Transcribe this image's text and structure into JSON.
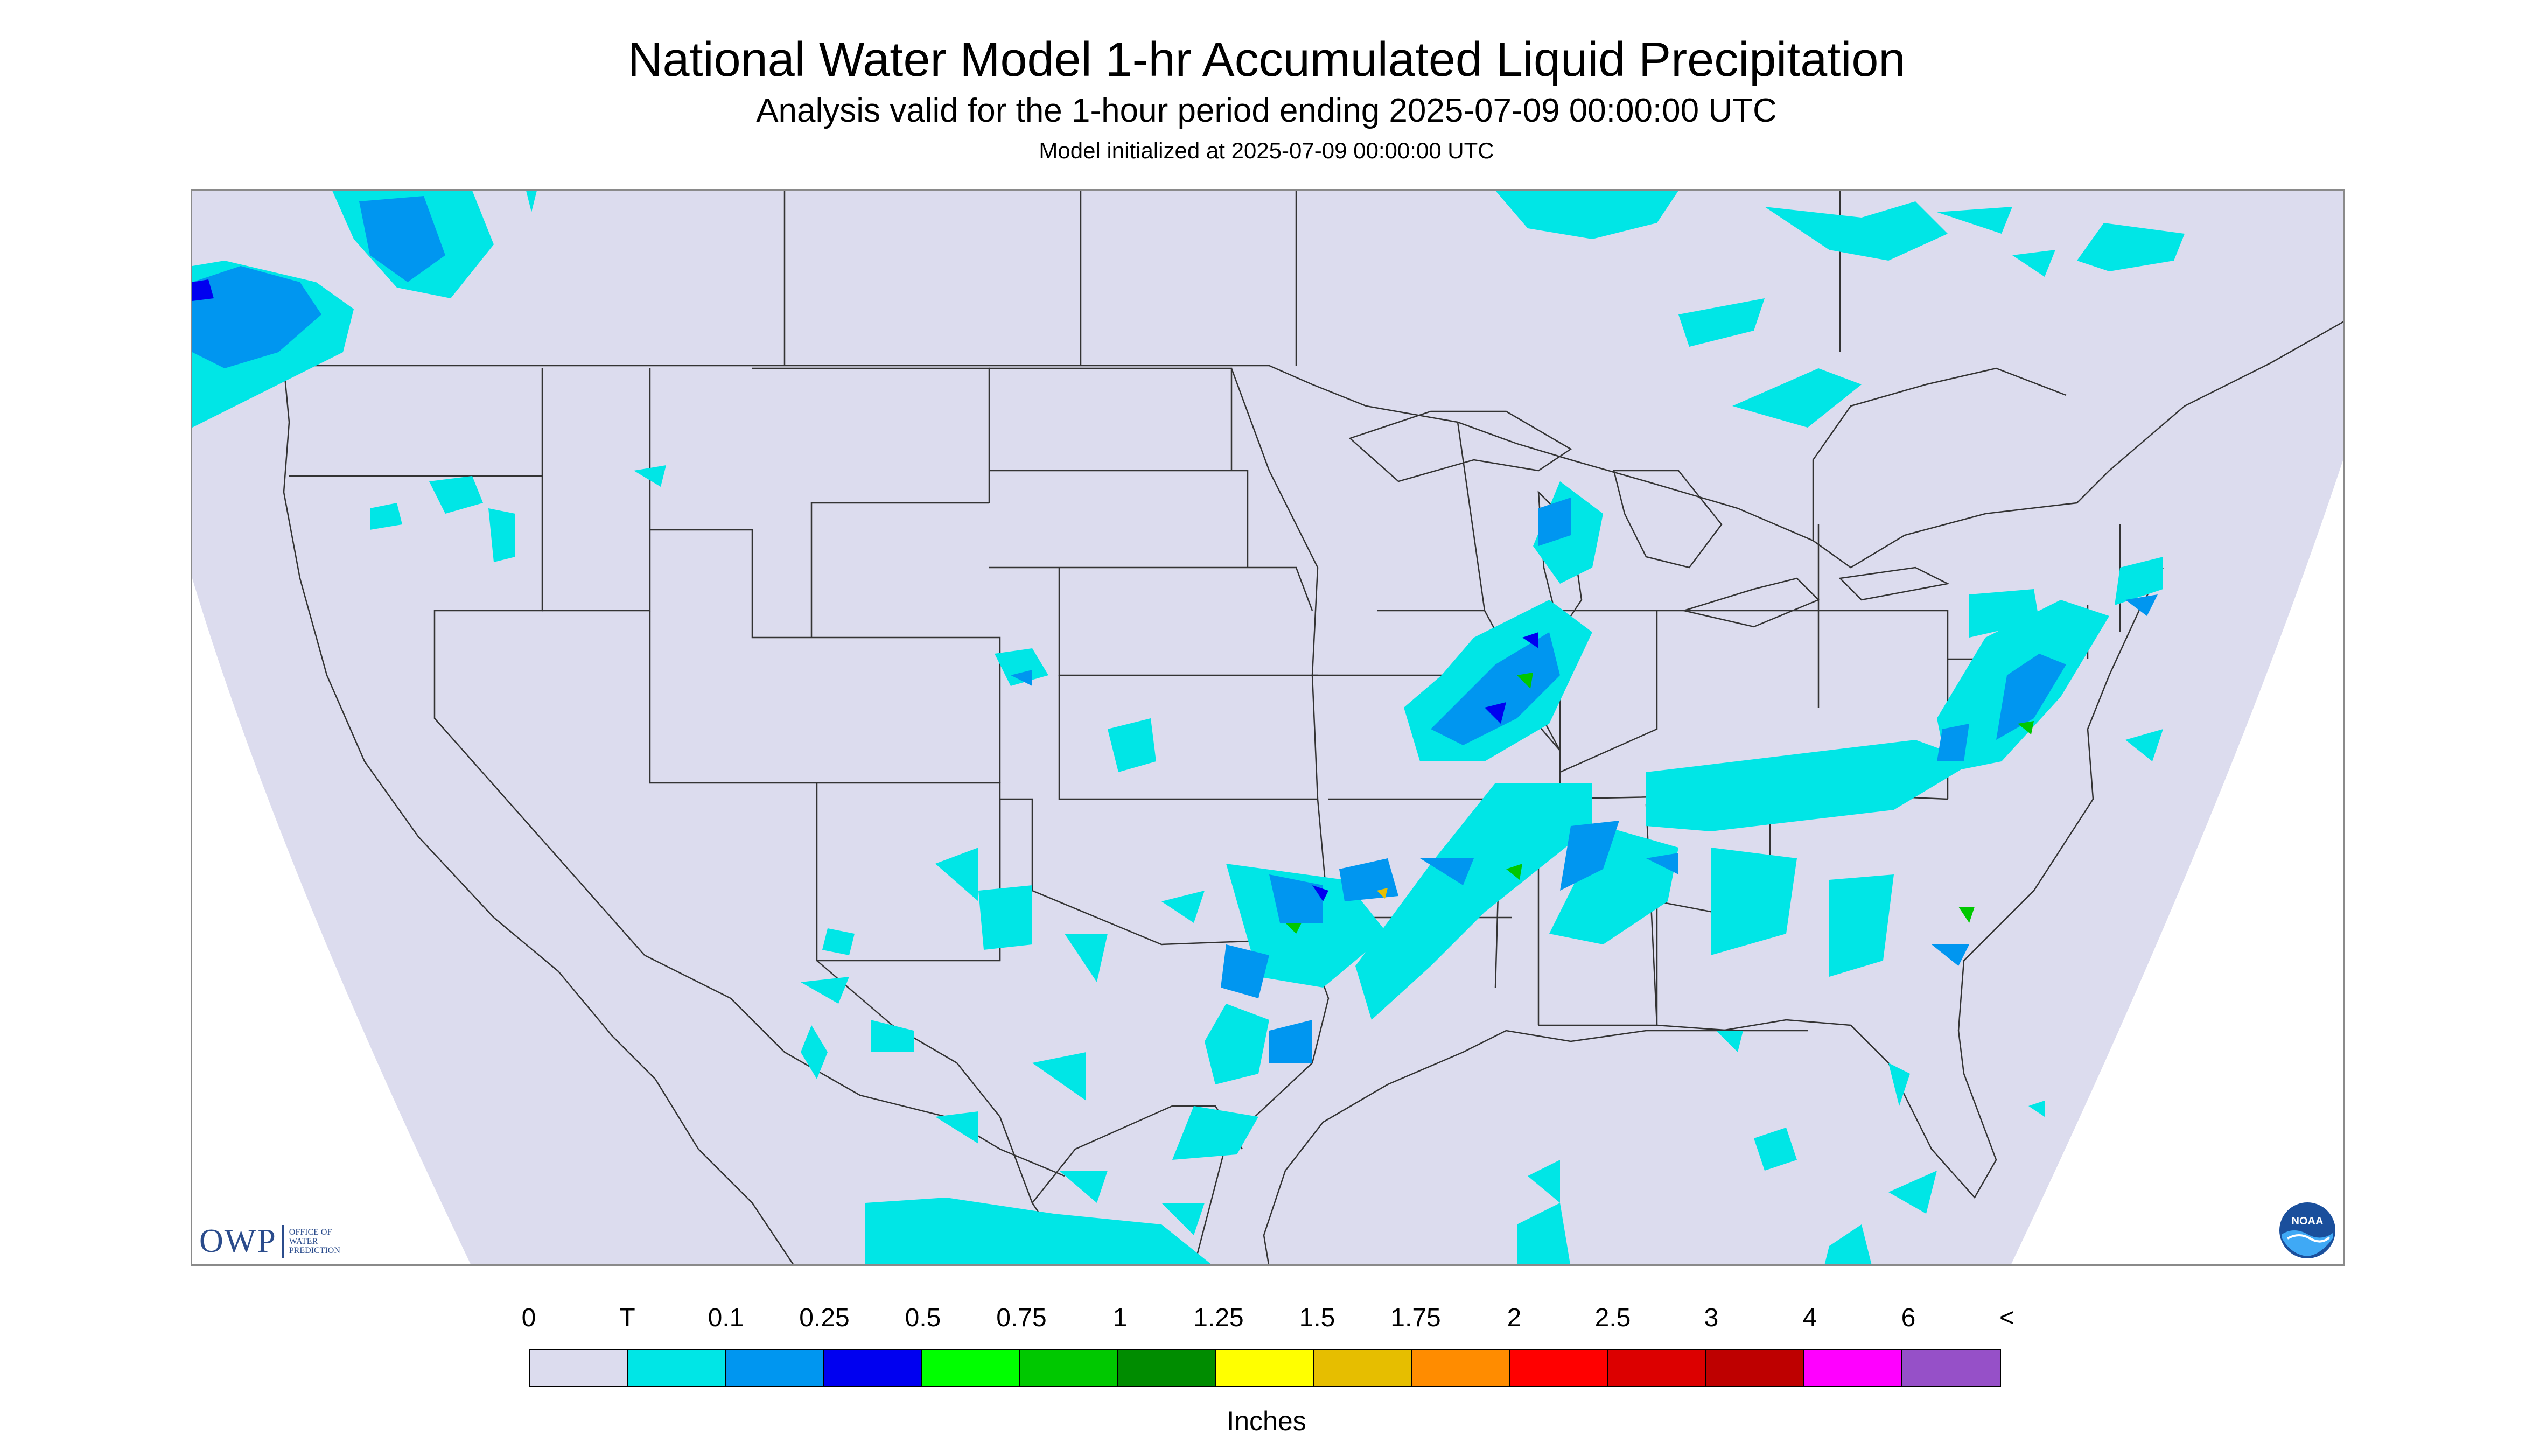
{
  "title": "National Water Model 1-hr Accumulated Liquid Precipitation",
  "subtitle": "Analysis valid for the 1-hour period ending 2025-07-09 00:00:00 UTC",
  "init_line": "Model initialized at 2025-07-09 00:00:00 UTC",
  "logos": {
    "owp_letters": "OWP",
    "owp_sub_1": "OFFICE OF",
    "owp_sub_2": "WATER",
    "owp_sub_3": "PREDICTION",
    "noaa_text": "NOAA"
  },
  "legend": {
    "labels": [
      "0",
      "T",
      "0.1",
      "0.25",
      "0.5",
      "0.75",
      "1",
      "1.25",
      "1.5",
      "1.75",
      "2",
      "2.5",
      "3",
      "4",
      "6",
      "<"
    ],
    "colors": [
      "#dcdcee",
      "#00e6e6",
      "#0096f0",
      "#0000f0",
      "#00ff00",
      "#00c800",
      "#008c00",
      "#ffff00",
      "#e6be00",
      "#ff8c00",
      "#ff0000",
      "#dc0000",
      "#be0000",
      "#ff00ff",
      "#9650c8"
    ],
    "units": "Inches"
  },
  "colors": {
    "domain_fill": "#dcdcee",
    "trace": "#00e6e6",
    "light": "#0096f0",
    "moderate": "#0000f0",
    "heavy_green": "#00c800",
    "heavy_yellow": "#e6be00",
    "border_line": "#333333"
  }
}
